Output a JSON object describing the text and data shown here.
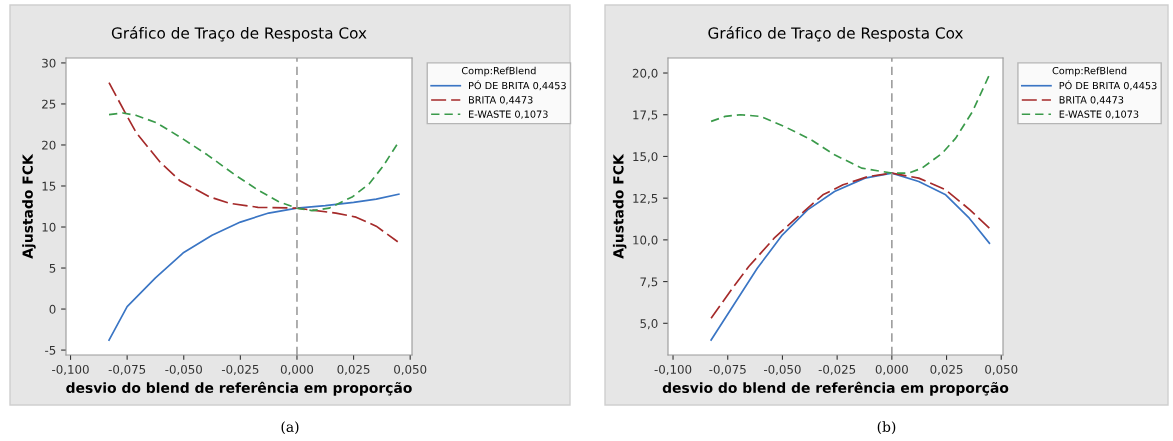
{
  "chart_data": [
    {
      "type": "line",
      "title": "Gráfico de Traço de Resposta Cox",
      "xlabel": "desvio do blend de referência em proporção",
      "ylabel": "Ajustado FCK",
      "legend_title": "Comp:RefBlend",
      "legend": "top right",
      "grid": false,
      "xlim": [
        -0.102,
        0.0508
      ],
      "ylim": [
        -5.6,
        30.6
      ],
      "xticks": [
        {
          "value": -0.1,
          "label": "-0,100"
        },
        {
          "value": -0.075,
          "label": "-0,075"
        },
        {
          "value": -0.05,
          "label": "-0,050"
        },
        {
          "value": -0.025,
          "label": "-0,025"
        },
        {
          "value": 0,
          "label": "0,000"
        },
        {
          "value": 0.025,
          "label": "0,025"
        },
        {
          "value": 0.05,
          "label": "0,050"
        }
      ],
      "yticks": [
        -5,
        0,
        5,
        10,
        15,
        20,
        25,
        30
      ],
      "ref_lines": [
        {
          "axis": "x",
          "value": 0,
          "color": "#a0a0a0",
          "line_style": "dashed"
        }
      ],
      "annotations": [
        "(a)"
      ],
      "series": [
        {
          "name": "PÓ DE BRITA 0,4453",
          "color": "#3a75c4",
          "line_style": "solid",
          "x": [
            -0.083,
            -0.075,
            -0.0625,
            -0.05,
            -0.0375,
            -0.025,
            -0.0125,
            0,
            0.0125,
            0.025,
            0.035,
            0.045
          ],
          "values": [
            -3.8,
            0.3,
            3.8,
            6.9,
            9.0,
            10.6,
            11.7,
            12.3,
            12.6,
            13.0,
            13.4,
            14.0
          ]
        },
        {
          "name": "BRITA 0,4473",
          "color": "#a52a2a",
          "line_style": "longdash",
          "x": [
            -0.083,
            -0.076,
            -0.071,
            -0.0604,
            -0.0515,
            -0.0388,
            -0.0299,
            -0.0172,
            0,
            0.0172,
            0.0261,
            0.035,
            0.0445
          ],
          "values": [
            27.6,
            24.0,
            21.5,
            17.9,
            15.6,
            13.7,
            12.9,
            12.4,
            12.3,
            11.7,
            11.2,
            10.1,
            8.2
          ]
        },
        {
          "name": "E-WASTE 0,1073",
          "color": "#3a9a4a",
          "line_style": "dashed",
          "x": [
            -0.083,
            -0.0769,
            -0.0709,
            -0.062,
            -0.0507,
            -0.0396,
            -0.0276,
            -0.0172,
            -0.0082,
            0,
            0.0067,
            0.0142,
            0.0246,
            0.032,
            0.038,
            0.0445
          ],
          "values": [
            23.7,
            23.9,
            23.6,
            22.7,
            20.8,
            18.8,
            16.4,
            14.5,
            13.1,
            12.3,
            12.0,
            12.3,
            13.7,
            15.3,
            17.4,
            20.2
          ]
        }
      ]
    },
    {
      "type": "line",
      "title": "Gráfico de Traço de Resposta Cox",
      "xlabel": "desvio do blend de referência em proporção",
      "ylabel": "Ajustado FCK",
      "legend_title": "Comp:RefBlend",
      "legend": "top right",
      "grid": false,
      "xlim": [
        -0.1023,
        0.0508
      ],
      "ylim": [
        3.1,
        20.9
      ],
      "xticks": [
        {
          "value": -0.1,
          "label": "-0,100"
        },
        {
          "value": -0.075,
          "label": "-0,075"
        },
        {
          "value": -0.05,
          "label": "-0,050"
        },
        {
          "value": -0.025,
          "label": "-0,025"
        },
        {
          "value": 0,
          "label": "0,000"
        },
        {
          "value": 0.025,
          "label": "0,025"
        },
        {
          "value": 0.05,
          "label": "0,050"
        }
      ],
      "yticks": [
        {
          "value": 5,
          "label": "5,0"
        },
        {
          "value": 7.5,
          "label": "7,5"
        },
        {
          "value": 10,
          "label": "10,0"
        },
        {
          "value": 12.5,
          "label": "12,5"
        },
        {
          "value": 15,
          "label": "15,0"
        },
        {
          "value": 17.5,
          "label": "17,5"
        },
        {
          "value": 20,
          "label": "20,0"
        }
      ],
      "ref_lines": [
        {
          "axis": "x",
          "value": 0,
          "color": "#a0a0a0",
          "line_style": "dashed"
        }
      ],
      "annotations": [
        "(b)"
      ],
      "series": [
        {
          "name": "PÓ DE BRITA 0,4453",
          "color": "#3a75c4",
          "line_style": "solid",
          "x": [
            -0.0826,
            -0.0723,
            -0.0615,
            -0.05,
            -0.0385,
            -0.0262,
            -0.0123,
            0,
            0.0123,
            0.0246,
            0.0354,
            0.0446
          ],
          "values": [
            4.0,
            6.1,
            8.3,
            10.3,
            11.8,
            12.9,
            13.7,
            14.0,
            13.5,
            12.7,
            11.3,
            9.8
          ]
        },
        {
          "name": "BRITA 0,4473",
          "color": "#a52a2a",
          "line_style": "longdash",
          "x": [
            -0.0826,
            -0.0723,
            -0.0654,
            -0.0538,
            -0.0446,
            -0.0315,
            -0.0223,
            -0.0108,
            0,
            0.0123,
            0.0246,
            0.0357,
            0.0446
          ],
          "values": [
            5.3,
            7.2,
            8.4,
            10.1,
            11.2,
            12.7,
            13.3,
            13.8,
            14.0,
            13.7,
            13.0,
            11.8,
            10.7
          ]
        },
        {
          "name": "E-WASTE 0,1073",
          "color": "#3a9a4a",
          "line_style": "dashed",
          "x": [
            -0.0826,
            -0.0762,
            -0.0692,
            -0.06,
            -0.0492,
            -0.0369,
            -0.0262,
            -0.0138,
            -0.0046,
            0,
            0.0077,
            0.0138,
            0.0231,
            0.0292,
            0.0369,
            0.0446
          ],
          "values": [
            17.1,
            17.4,
            17.5,
            17.4,
            16.8,
            16.0,
            15.1,
            14.3,
            14.1,
            14.0,
            14.0,
            14.3,
            15.2,
            16.1,
            17.7,
            19.9
          ]
        }
      ]
    }
  ]
}
